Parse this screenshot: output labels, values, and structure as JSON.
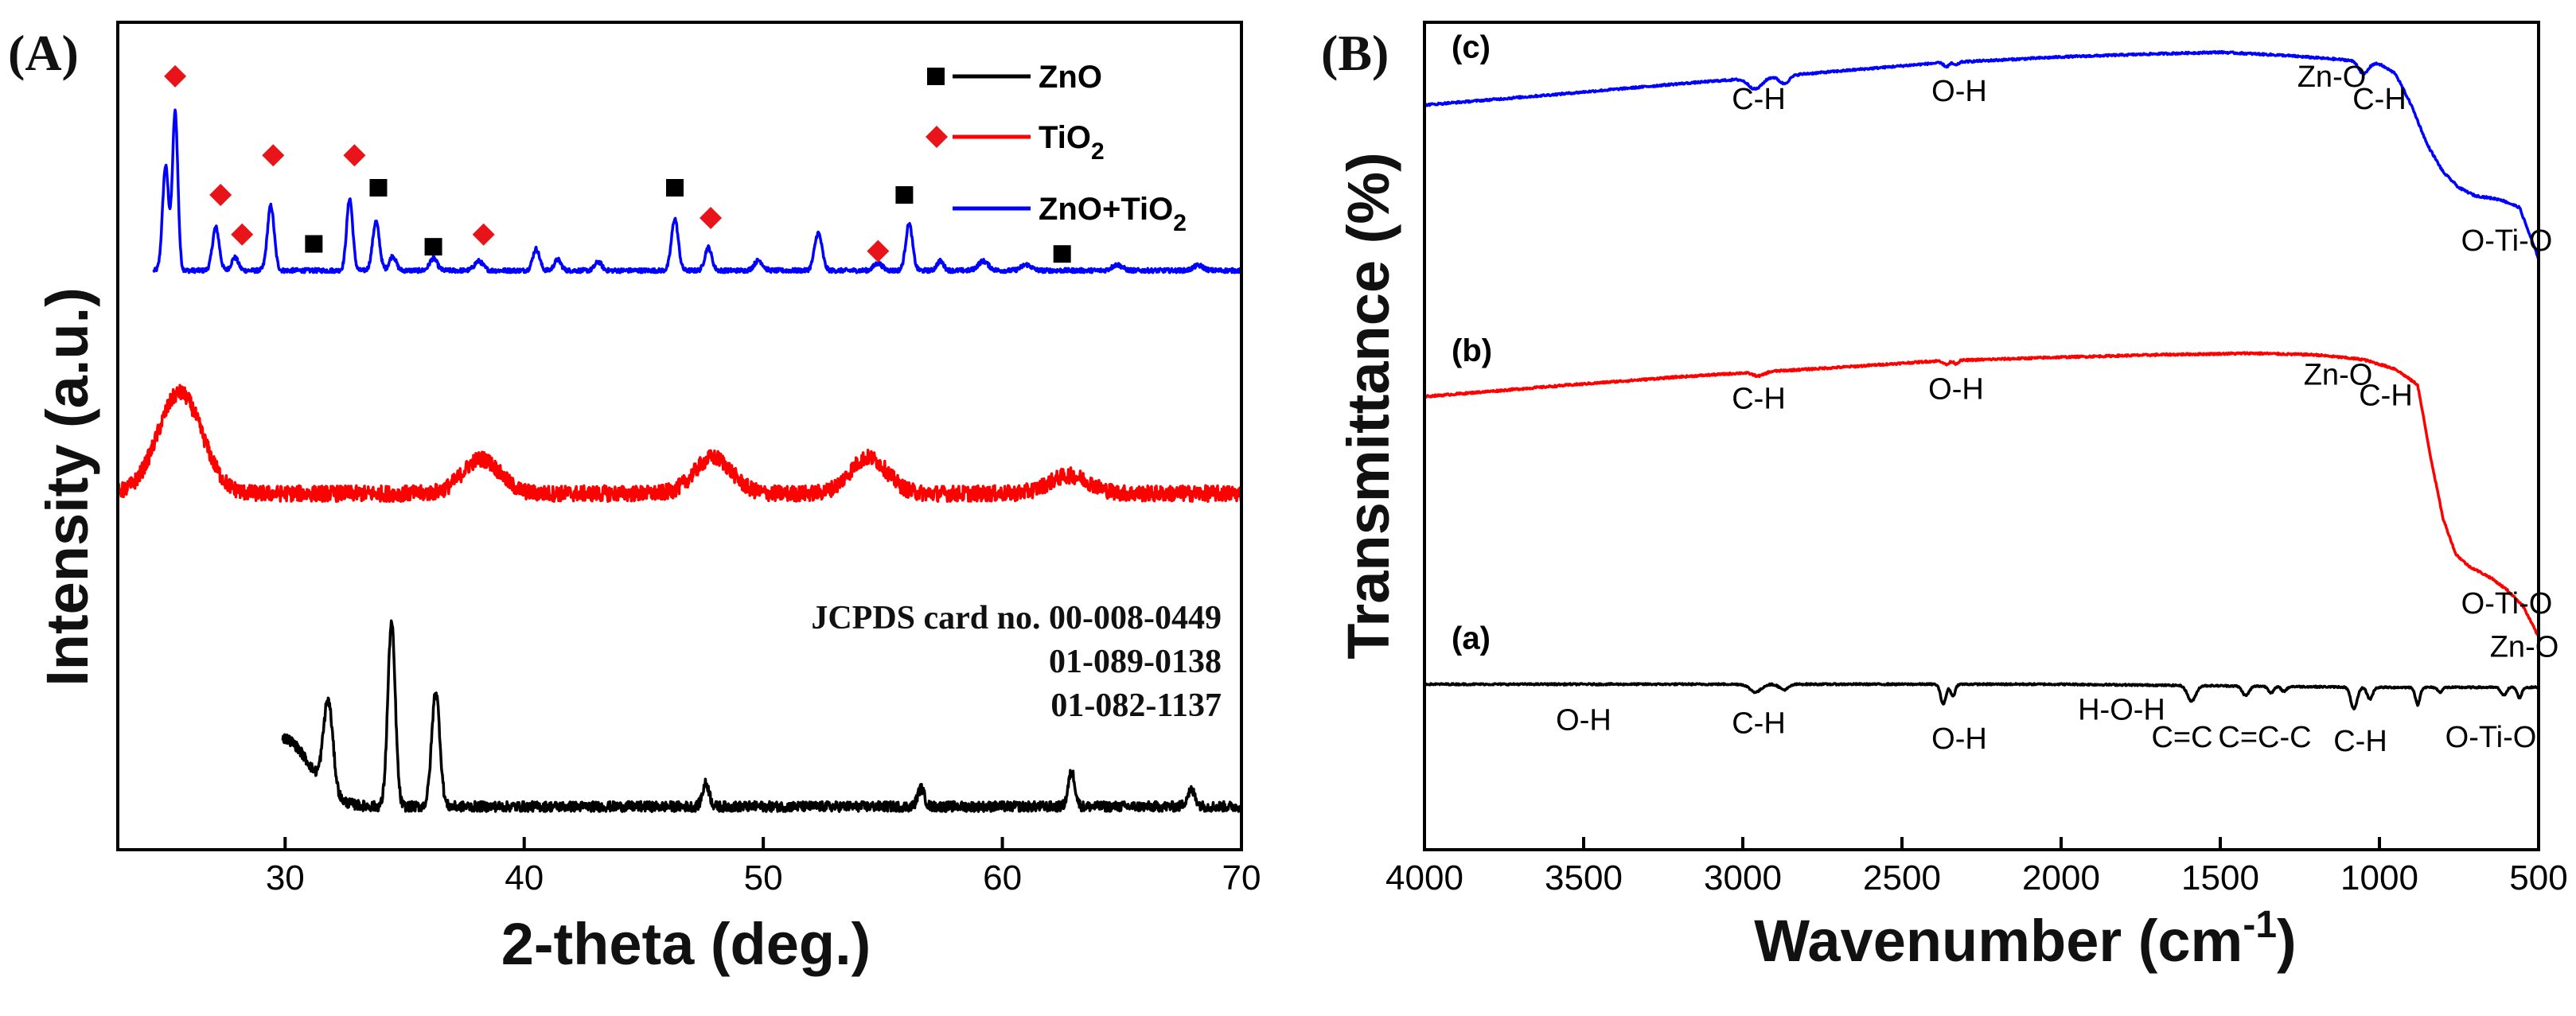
{
  "chart_data": [
    {
      "panel": "(A)",
      "type": "line",
      "xlabel": "2-theta (deg.)",
      "ylabel": "Intensity (a.u.)",
      "xlim": [
        23,
        70
      ],
      "xticks": [
        30,
        40,
        50,
        60,
        70
      ],
      "legend": {
        "placement": "top-right",
        "entries": [
          {
            "label": "ZnO",
            "sub": "",
            "color": "#000000",
            "marker": "square"
          },
          {
            "label": "TiO",
            "sub": "2",
            "color": "#ff0000",
            "marker": "diamond"
          },
          {
            "label": "ZnO+TiO",
            "sub": "2",
            "color": "#0000ff",
            "marker": ""
          }
        ]
      },
      "annotation": [
        "JCPDS card no. 00-008-0449",
        "01-089-0138",
        "01-082-1137"
      ],
      "series": [
        {
          "name": "ZnO+TiO2",
          "color": "#0000ff",
          "x_range": [
            24.5,
            70
          ],
          "baseline": 8.05,
          "noise": 0.03,
          "peaks": [
            [
              25.0,
              1.45,
              0.18
            ],
            [
              25.4,
              2.2,
              0.16
            ],
            [
              27.1,
              0.6,
              0.2
            ],
            [
              27.9,
              0.18,
              0.2
            ],
            [
              29.4,
              0.9,
              0.2
            ],
            [
              32.7,
              1.0,
              0.18
            ],
            [
              33.8,
              0.68,
              0.2
            ],
            [
              34.5,
              0.2,
              0.2
            ],
            [
              36.2,
              0.17,
              0.22
            ],
            [
              38.1,
              0.13,
              0.25
            ],
            [
              40.5,
              0.3,
              0.2
            ],
            [
              41.4,
              0.15,
              0.2
            ],
            [
              43.1,
              0.12,
              0.2
            ],
            [
              46.3,
              0.72,
              0.2
            ],
            [
              47.7,
              0.32,
              0.2
            ],
            [
              49.8,
              0.14,
              0.25
            ],
            [
              52.3,
              0.52,
              0.22
            ],
            [
              54.8,
              0.1,
              0.25
            ],
            [
              56.1,
              0.65,
              0.2
            ],
            [
              57.4,
              0.13,
              0.2
            ],
            [
              59.2,
              0.13,
              0.3
            ],
            [
              61.0,
              0.08,
              0.3
            ],
            [
              64.8,
              0.08,
              0.3
            ],
            [
              68.2,
              0.07,
              0.3
            ]
          ]
        },
        {
          "name": "TiO2",
          "color": "#ff0000",
          "x_range": [
            23,
            70
          ],
          "baseline": 4.95,
          "noise": 0.11,
          "peaks": [
            [
              25.6,
              1.4,
              1.3
            ],
            [
              38.2,
              0.48,
              1.1
            ],
            [
              47.9,
              0.5,
              1.1
            ],
            [
              54.4,
              0.5,
              1.1
            ],
            [
              62.8,
              0.25,
              1.2
            ]
          ]
        },
        {
          "name": "ZnO",
          "color": "#000000",
          "x_range": [
            29.9,
            70
          ],
          "baseline": 0.6,
          "noise": 0.07,
          "peaks": [
            [
              29.9,
              0.95,
              1.6
            ],
            [
              31.8,
              1.25,
              0.28
            ],
            [
              34.45,
              2.55,
              0.22
            ],
            [
              36.3,
              1.6,
              0.24
            ],
            [
              47.6,
              0.32,
              0.2
            ],
            [
              56.6,
              0.25,
              0.2
            ],
            [
              62.9,
              0.48,
              0.2
            ],
            [
              67.9,
              0.22,
              0.25
            ]
          ]
        }
      ],
      "markers": [
        {
          "type": "diamond",
          "x": 25.4,
          "y": 10.75
        },
        {
          "type": "diamond",
          "x": 27.3,
          "y": 9.1
        },
        {
          "type": "diamond",
          "x": 28.2,
          "y": 8.55
        },
        {
          "type": "diamond",
          "x": 29.5,
          "y": 9.65
        },
        {
          "type": "diamond",
          "x": 32.9,
          "y": 9.65
        },
        {
          "type": "diamond",
          "x": 38.3,
          "y": 8.55
        },
        {
          "type": "diamond",
          "x": 47.8,
          "y": 8.78
        },
        {
          "type": "diamond",
          "x": 54.8,
          "y": 8.32
        },
        {
          "type": "square",
          "x": 31.2,
          "y": 8.42
        },
        {
          "type": "square",
          "x": 33.9,
          "y": 9.2
        },
        {
          "type": "square",
          "x": 36.2,
          "y": 8.38
        },
        {
          "type": "square",
          "x": 46.3,
          "y": 9.2
        },
        {
          "type": "square",
          "x": 55.9,
          "y": 9.1
        },
        {
          "type": "square",
          "x": 62.5,
          "y": 8.28
        }
      ]
    },
    {
      "panel": "(B)",
      "type": "line",
      "xlabel": "Wavenumber (cm",
      "xlabel_sup": "-1",
      "xlabel_close": ")",
      "ylabel": "Transmittance (%)",
      "xlim": [
        4000,
        500
      ],
      "xticks": [
        4000,
        3500,
        3000,
        2500,
        2000,
        1500,
        1000,
        500
      ],
      "series": [
        {
          "name": "(c)",
          "color": "#0000ff",
          "label_xy": [
            3940,
            10.05
          ],
          "noise": 0.012,
          "points": [
            [
              4000,
              9.45
            ],
            [
              3600,
              9.58
            ],
            [
              3200,
              9.72
            ],
            [
              3000,
              9.78
            ],
            [
              2700,
              9.88
            ],
            [
              2400,
              9.98
            ],
            [
              2000,
              10.06
            ],
            [
              1700,
              10.1
            ],
            [
              1500,
              10.12
            ],
            [
              1300,
              10.08
            ],
            [
              1100,
              10.02
            ],
            [
              1000,
              9.97
            ],
            [
              950,
              9.85
            ],
            [
              900,
              9.45
            ],
            [
              850,
              8.95
            ],
            [
              800,
              8.6
            ],
            [
              750,
              8.4
            ],
            [
              700,
              8.3
            ],
            [
              620,
              8.25
            ],
            [
              560,
              8.15
            ],
            [
              500,
              7.5
            ]
          ],
          "dips": [
            [
              2960,
              0.14,
              30
            ],
            [
              2870,
              0.1,
              22
            ],
            [
              2360,
              0.05,
              12
            ],
            [
              2330,
              0.04,
              10
            ],
            [
              1050,
              0.15,
              20
            ]
          ]
        },
        {
          "name": "(b)",
          "color": "#ff0000",
          "label_xy": [
            3940,
            6.2
          ],
          "noise": 0.012,
          "points": [
            [
              4000,
              5.75
            ],
            [
              3600,
              5.88
            ],
            [
              3200,
              6.0
            ],
            [
              3000,
              6.05
            ],
            [
              2700,
              6.12
            ],
            [
              2400,
              6.2
            ],
            [
              2000,
              6.25
            ],
            [
              1700,
              6.28
            ],
            [
              1400,
              6.3
            ],
            [
              1200,
              6.28
            ],
            [
              1050,
              6.22
            ],
            [
              950,
              6.1
            ],
            [
              880,
              5.9
            ],
            [
              840,
              5.0
            ],
            [
              800,
              4.2
            ],
            [
              760,
              3.75
            ],
            [
              720,
              3.6
            ],
            [
              650,
              3.45
            ],
            [
              600,
              3.3
            ],
            [
              550,
              3.1
            ],
            [
              500,
              2.7
            ]
          ],
          "dips": [
            [
              2950,
              0.05,
              25
            ],
            [
              2360,
              0.05,
              12
            ],
            [
              2330,
              0.04,
              10
            ]
          ]
        },
        {
          "name": "(a)",
          "color": "#000000",
          "label_xy": [
            3940,
            2.55
          ],
          "noise": 0.01,
          "points": [
            [
              4000,
              2.1
            ],
            [
              3000,
              2.1
            ],
            [
              2000,
              2.1
            ],
            [
              1500,
              2.08
            ],
            [
              1000,
              2.06
            ],
            [
              500,
              2.06
            ]
          ],
          "dips": [
            [
              2960,
              0.1,
              25
            ],
            [
              2870,
              0.07,
              20
            ],
            [
              2370,
              0.25,
              12
            ],
            [
              2340,
              0.15,
              10
            ],
            [
              1590,
              0.2,
              18
            ],
            [
              1420,
              0.12,
              15
            ],
            [
              1340,
              0.08,
              12
            ],
            [
              1300,
              0.06,
              12
            ],
            [
              1080,
              0.28,
              14
            ],
            [
              1030,
              0.15,
              12
            ],
            [
              880,
              0.22,
              10
            ],
            [
              810,
              0.06,
              10
            ],
            [
              610,
              0.1,
              12
            ],
            [
              560,
              0.13,
              10
            ]
          ]
        }
      ],
      "peak_labels": [
        {
          "text": "C-H",
          "x": 2950,
          "y": 9.4
        },
        {
          "text": "O-H",
          "x": 2320,
          "y": 9.5
        },
        {
          "text": "Zn-O",
          "x": 1150,
          "y": 9.68
        },
        {
          "text": "C-H",
          "x": 1000,
          "y": 9.4
        },
        {
          "text": "O-Ti-O",
          "x": 600,
          "y": 7.6
        },
        {
          "text": "C-H",
          "x": 2950,
          "y": 5.6
        },
        {
          "text": "O-H",
          "x": 2330,
          "y": 5.72
        },
        {
          "text": "Zn-O",
          "x": 1130,
          "y": 5.9
        },
        {
          "text": "C-H",
          "x": 980,
          "y": 5.64
        },
        {
          "text": "O-Ti-O",
          "x": 600,
          "y": 3.0
        },
        {
          "text": "Zn-O",
          "x": 545,
          "y": 2.45
        },
        {
          "text": "O-H",
          "x": 3500,
          "y": 1.52
        },
        {
          "text": "C-H",
          "x": 2950,
          "y": 1.48
        },
        {
          "text": "O-H",
          "x": 2320,
          "y": 1.28
        },
        {
          "text": "H-O-H",
          "x": 1810,
          "y": 1.65
        },
        {
          "text": "C=C",
          "x": 1620,
          "y": 1.3
        },
        {
          "text": "C=C-C",
          "x": 1360,
          "y": 1.3
        },
        {
          "text": "C-H",
          "x": 1060,
          "y": 1.25
        },
        {
          "text": "O-Ti-O",
          "x": 650,
          "y": 1.3
        }
      ]
    }
  ]
}
